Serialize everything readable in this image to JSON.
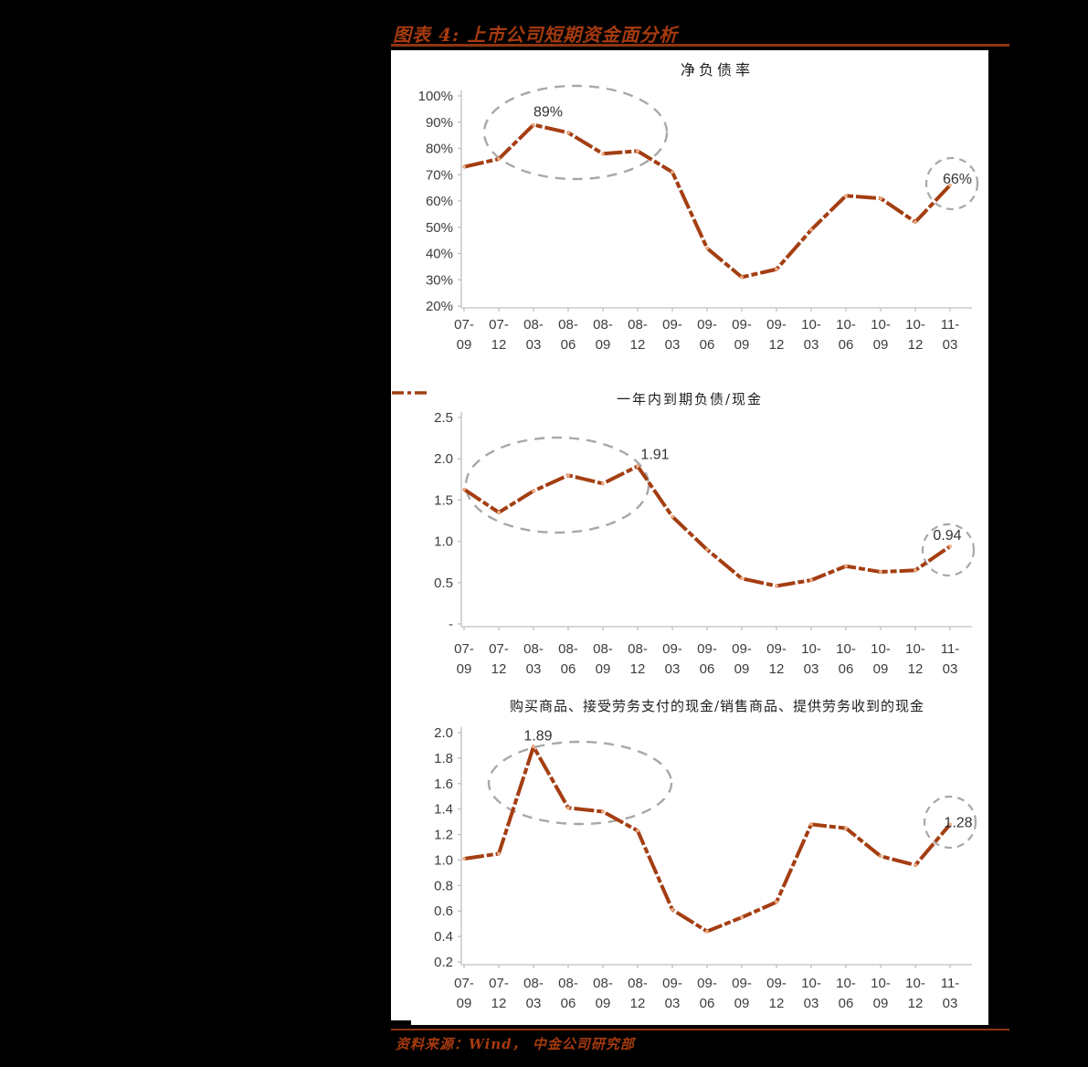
{
  "figure": {
    "title": "图表 4: 上市公司短期资金面分析",
    "source": "资料来源：Wind， 中金公司研究部"
  },
  "colors": {
    "accent": "#A43E12",
    "point_marker": "#EDAE87",
    "dashed_outline": "#A8A8A8",
    "axis": "#BFBFBF",
    "tick_text": "#3D3D3D",
    "label_text": "#333333",
    "title_text": "#A63A0E",
    "background": "#000000",
    "panel": "#FFFFFF"
  },
  "chart_data": [
    {
      "type": "line",
      "title": "净负债率",
      "xlabel": "",
      "ylabel": "",
      "grid": false,
      "ylim": [
        20,
        100
      ],
      "categories": [
        "07-09",
        "07-12",
        "08-03",
        "08-06",
        "08-09",
        "08-12",
        "09-03",
        "09-06",
        "09-09",
        "09-12",
        "10-03",
        "10-06",
        "10-09",
        "10-12",
        "11-03"
      ],
      "values": [
        73,
        76,
        89,
        86,
        78,
        79,
        71,
        42,
        31,
        34,
        49,
        62,
        61,
        52,
        66
      ],
      "yticks": [
        [
          100,
          "100%"
        ],
        [
          90,
          "90%"
        ],
        [
          80,
          "80%"
        ],
        [
          70,
          "70%"
        ],
        [
          60,
          "60%"
        ],
        [
          50,
          "50%"
        ],
        [
          40,
          "40%"
        ],
        [
          30,
          "30%"
        ],
        [
          20,
          "20%"
        ]
      ],
      "annotations": [
        {
          "index": 2,
          "text": "89%"
        },
        {
          "index": 14,
          "text": "66%"
        }
      ],
      "highlighted_ranges": [
        {
          "from": "07-12",
          "to": "08-12",
          "shape": "ellipse"
        },
        {
          "point": "11-03",
          "shape": "circle"
        }
      ]
    },
    {
      "type": "line",
      "legend": "一年内到期负债/现金",
      "legend_position": "top",
      "xlabel": "",
      "ylabel": "",
      "grid": false,
      "ylim": [
        0,
        2.5
      ],
      "categories": [
        "07-09",
        "07-12",
        "08-03",
        "08-06",
        "08-09",
        "08-12",
        "09-03",
        "09-06",
        "09-09",
        "09-12",
        "10-03",
        "10-06",
        "10-09",
        "10-12",
        "11-03"
      ],
      "values": [
        1.63,
        1.35,
        1.61,
        1.8,
        1.7,
        1.91,
        1.3,
        0.9,
        0.55,
        0.46,
        0.53,
        0.7,
        0.63,
        0.65,
        0.94
      ],
      "yticks": [
        [
          2.5,
          "2.5"
        ],
        [
          2.0,
          "2.0"
        ],
        [
          1.5,
          "1.5"
        ],
        [
          1.0,
          "1.0"
        ],
        [
          0.5,
          "0.5"
        ],
        [
          0,
          "-"
        ]
      ],
      "annotations": [
        {
          "index": 5,
          "text": "1.91"
        },
        {
          "index": 14,
          "text": "0.94"
        }
      ],
      "highlighted_ranges": [
        {
          "from": "07-09",
          "to": "08-12",
          "shape": "ellipse"
        },
        {
          "point": "11-03",
          "shape": "circle"
        }
      ]
    },
    {
      "type": "line",
      "title": "购买商品、接受劳务支付的现金/销售商品、提供劳务收到的现金",
      "xlabel": "",
      "ylabel": "",
      "grid": false,
      "ylim": [
        0.2,
        2.0
      ],
      "categories": [
        "07-09",
        "07-12",
        "08-03",
        "08-06",
        "08-09",
        "08-12",
        "09-03",
        "09-06",
        "09-09",
        "09-12",
        "10-03",
        "10-06",
        "10-09",
        "10-12",
        "11-03"
      ],
      "values": [
        1.01,
        1.05,
        1.89,
        1.41,
        1.38,
        1.23,
        0.61,
        0.44,
        0.55,
        0.67,
        1.28,
        1.25,
        1.03,
        0.96,
        1.28
      ],
      "yticks": [
        [
          2.0,
          "2.0"
        ],
        [
          1.8,
          "1.8"
        ],
        [
          1.6,
          "1.6"
        ],
        [
          1.4,
          "1.4"
        ],
        [
          1.2,
          "1.2"
        ],
        [
          1.0,
          "1.0"
        ],
        [
          0.8,
          "0.8"
        ],
        [
          0.6,
          "0.6"
        ],
        [
          0.4,
          "0.4"
        ],
        [
          0.2,
          "0.2"
        ]
      ],
      "annotations": [
        {
          "index": 2,
          "text": "1.89"
        },
        {
          "index": 14,
          "text": "1.28"
        }
      ],
      "highlighted_ranges": [
        {
          "from": "07-12",
          "to": "08-12",
          "shape": "ellipse"
        },
        {
          "point": "11-03",
          "shape": "circle"
        }
      ]
    }
  ]
}
